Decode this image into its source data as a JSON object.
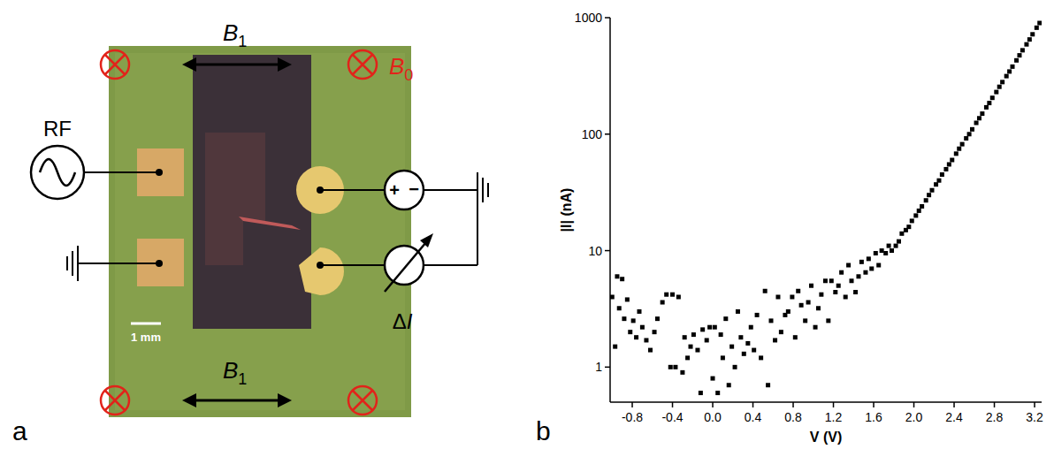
{
  "diagram": {
    "panel_label": "a",
    "field_labels": {
      "b1_top": [
        "B",
        "1"
      ],
      "b1_bottom": [
        "B",
        "1"
      ],
      "b0": [
        "B",
        "0"
      ]
    },
    "source_label": "RF",
    "voltage_source_signs": [
      "+",
      "−"
    ],
    "meter_label": [
      "Δ",
      "I"
    ],
    "scale_bar": "1 mm"
  },
  "chart_data": {
    "panel_label": "b",
    "type": "scatter",
    "x_label": "V (V)",
    "y_label": "|I| (nA)",
    "marker": "square",
    "color": "#000000",
    "log": "y",
    "xlim": [
      -1.02,
      3.27
    ],
    "ylim": [
      0.5,
      1000
    ],
    "xticks": [
      -0.8,
      -0.4,
      {
        "value": 0,
        "label": "0.0"
      },
      0.4,
      0.8,
      1.2,
      1.6,
      {
        "value": 2,
        "label": "2.0"
      },
      2.4,
      2.8,
      3.2
    ],
    "yticks": [
      1,
      10,
      100,
      1000
    ],
    "x": [
      -1.0,
      -0.97,
      -0.95,
      -0.93,
      -0.9,
      -0.88,
      -0.85,
      -0.82,
      -0.79,
      -0.76,
      -0.73,
      -0.7,
      -0.66,
      -0.62,
      -0.58,
      -0.55,
      -0.5,
      -0.46,
      -0.42,
      -0.4,
      -0.37,
      -0.34,
      -0.3,
      -0.28,
      -0.25,
      -0.22,
      -0.19,
      -0.15,
      -0.12,
      -0.1,
      -0.06,
      -0.03,
      0.0,
      0.02,
      0.05,
      0.08,
      0.1,
      0.13,
      0.16,
      0.19,
      0.22,
      0.25,
      0.28,
      0.31,
      0.35,
      0.38,
      0.41,
      0.44,
      0.48,
      0.52,
      0.55,
      0.58,
      0.62,
      0.65,
      0.68,
      0.72,
      0.75,
      0.79,
      0.82,
      0.85,
      0.88,
      0.92,
      0.95,
      0.98,
      1.02,
      1.05,
      1.08,
      1.12,
      1.15,
      1.18,
      1.22,
      1.25,
      1.28,
      1.32,
      1.35,
      1.38,
      1.42,
      1.45,
      1.48,
      1.52,
      1.55,
      1.58,
      1.62,
      1.65,
      1.68,
      1.72,
      1.75,
      1.78,
      1.82,
      1.85,
      1.88,
      1.92,
      1.95,
      1.98,
      2.02,
      2.05,
      2.08,
      2.12,
      2.15,
      2.18,
      2.22,
      2.25,
      2.28,
      2.32,
      2.35,
      2.38,
      2.42,
      2.45,
      2.48,
      2.52,
      2.55,
      2.58,
      2.62,
      2.65,
      2.68,
      2.72,
      2.75,
      2.78,
      2.82,
      2.85,
      2.88,
      2.92,
      2.95,
      2.98,
      3.02,
      3.05,
      3.08,
      3.12,
      3.15,
      3.18,
      3.22,
      3.25
    ],
    "values": [
      4.0,
      1.5,
      6.0,
      3.2,
      5.7,
      2.6,
      3.8,
      2.0,
      2.5,
      1.8,
      3.0,
      2.2,
      1.7,
      1.4,
      2.0,
      2.6,
      3.6,
      4.2,
      1.0,
      4.2,
      1.0,
      4.0,
      0.9,
      1.8,
      1.2,
      1.5,
      1.9,
      1.4,
      0.6,
      2.1,
      1.7,
      2.2,
      0.8,
      2.2,
      0.6,
      1.9,
      1.2,
      2.6,
      0.7,
      1.5,
      1.0,
      3.0,
      1.8,
      1.3,
      1.6,
      2.2,
      1.4,
      2.8,
      1.2,
      4.5,
      0.7,
      2.5,
      1.7,
      4.0,
      2.0,
      2.8,
      3.0,
      4.0,
      1.8,
      4.5,
      3.4,
      2.5,
      3.6,
      5.0,
      2.2,
      3.2,
      4.2,
      5.5,
      2.5,
      5.5,
      4.4,
      5.0,
      6.5,
      4.0,
      7.5,
      5.5,
      4.4,
      6.0,
      8.0,
      6.5,
      8.5,
      7.0,
      9.5,
      7.5,
      10.0,
      9.5,
      11,
      10,
      11,
      12,
      14,
      15,
      16,
      18,
      20,
      22,
      24,
      27,
      30,
      33,
      37,
      40,
      45,
      50,
      55,
      60,
      68,
      75,
      82,
      92,
      100,
      110,
      125,
      137,
      150,
      170,
      185,
      205,
      230,
      255,
      280,
      315,
      345,
      380,
      430,
      475,
      525,
      590,
      650,
      720,
      820,
      900
    ]
  }
}
